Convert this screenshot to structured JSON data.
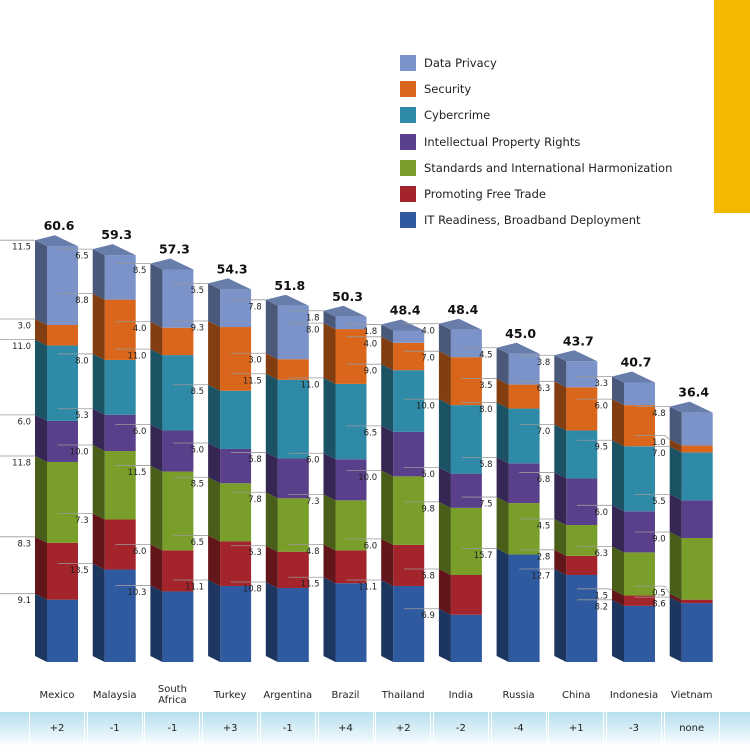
{
  "colors": {
    "accent_block": "#f5b800",
    "rank_strip": "#b7dfee"
  },
  "chart_data": {
    "type": "bar",
    "stacked": true,
    "style": "3d-stacked-columns",
    "categories": [
      "Mexico",
      "Malaysia",
      "South Africa",
      "Turkey",
      "Argentina",
      "Brazil",
      "Thailand",
      "India",
      "Russia",
      "China",
      "Indonesia",
      "Vietnam"
    ],
    "totals": [
      "60.6",
      "59.3",
      "57.3",
      "54.3",
      "51.8",
      "50.3",
      "48.4",
      "48.4",
      "45.0",
      "43.7",
      "40.7",
      "36.4"
    ],
    "rank_changes": [
      "+2",
      "-1",
      "-1",
      "+3",
      "-1",
      "+4",
      "+2",
      "-2",
      "-4",
      "+1",
      "-3",
      "none"
    ],
    "legend_placement": "top-right",
    "series": [
      {
        "name": "IT Readiness, Broadband Deployment",
        "color": "#2f5aa0",
        "values": [
          9.1,
          13.5,
          10.3,
          11.1,
          10.8,
          11.5,
          11.1,
          6.9,
          15.7,
          12.7,
          8.2,
          8.6
        ]
      },
      {
        "name": "Promoting Free Trade",
        "color": "#a3242a",
        "values": [
          8.3,
          7.3,
          6.0,
          6.5,
          5.3,
          4.8,
          6.0,
          5.8,
          null,
          2.8,
          1.5,
          0.5
        ]
      },
      {
        "name": "Standards and International Harmonization",
        "color": "#7a9e2a",
        "values": [
          11.8,
          10.0,
          11.5,
          8.5,
          7.8,
          7.3,
          10.0,
          9.8,
          7.5,
          4.5,
          6.3,
          9.0
        ]
      },
      {
        "name": "Intellectual Property Rights",
        "color": "#5a3f8a",
        "values": [
          6.0,
          5.3,
          6.0,
          5.0,
          5.8,
          6.0,
          6.5,
          5.0,
          5.8,
          6.8,
          6.0,
          5.5
        ]
      },
      {
        "name": "Cybercrime",
        "color": "#2e8aa6",
        "values": [
          11.0,
          8.0,
          11.0,
          8.5,
          11.5,
          11.0,
          9.0,
          10.0,
          8.0,
          7.0,
          9.5,
          7.0
        ]
      },
      {
        "name": "Security",
        "color": "#d9661a",
        "values": [
          3.0,
          8.8,
          4.0,
          9.3,
          3.0,
          8.0,
          4.0,
          7.0,
          3.5,
          6.3,
          6.0,
          1.0
        ]
      },
      {
        "name": "Data Privacy",
        "color": "#7b93c9",
        "values": [
          11.5,
          6.5,
          8.5,
          5.5,
          7.8,
          1.8,
          1.8,
          4.0,
          4.5,
          3.8,
          3.3,
          4.8
        ]
      }
    ]
  }
}
